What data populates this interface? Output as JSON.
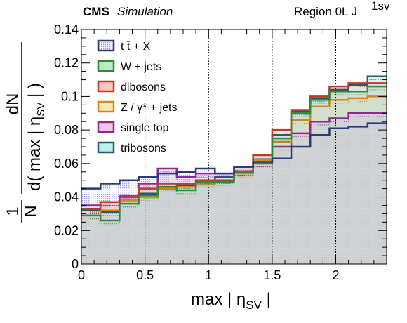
{
  "header": {
    "cms": "CMS",
    "simulation": "Simulation",
    "region": "Region 0L J",
    "region_sup": "1sv"
  },
  "axes": {
    "xlabel_main": "max | η",
    "xlabel_sub": "SV",
    "xlabel_end": " |",
    "ylabel_one": "1",
    "ylabel_n": "N",
    "ylabel_num": "dN",
    "ylabel_den_main": "d( max | η",
    "ylabel_den_sub": "SV",
    "ylabel_den_end": " | )"
  },
  "chart_data": {
    "type": "histogram",
    "xlim": [
      0,
      2.4
    ],
    "ylim": [
      0,
      0.14
    ],
    "x_ticks": [
      0,
      0.5,
      1,
      1.5,
      2
    ],
    "x_tick_labels": [
      "0",
      "0.5",
      "1",
      "1.5",
      "2"
    ],
    "y_ticks": [
      0,
      0.02,
      0.04,
      0.06,
      0.08,
      0.1,
      0.12,
      0.14
    ],
    "y_tick_labels": [
      "0",
      "0.02",
      "0.04",
      "0.06",
      "0.08",
      "0.1",
      "0.12",
      "0.14"
    ],
    "dashed_lines_x": [
      0.5,
      1,
      1.5,
      2
    ],
    "bin_edges": [
      0,
      0.15,
      0.3,
      0.45,
      0.6,
      0.75,
      0.9,
      1.05,
      1.2,
      1.35,
      1.5,
      1.65,
      1.8,
      1.95,
      2.1,
      2.25,
      2.4
    ],
    "legend_position": "top-left",
    "series": [
      {
        "name": "t t̄ + X",
        "color": "#2b3a7a",
        "fill": "#b9bde6",
        "values": [
          0.045,
          0.048,
          0.05,
          0.052,
          0.054,
          0.055,
          0.057,
          0.054,
          0.058,
          0.061,
          0.063,
          0.07,
          0.077,
          0.081,
          0.082,
          0.084
        ]
      },
      {
        "name": "W + jets",
        "color": "#2e8b3a",
        "fill": "#9fe3a9",
        "values": [
          0.029,
          0.026,
          0.036,
          0.041,
          0.046,
          0.044,
          0.049,
          0.049,
          0.055,
          0.06,
          0.075,
          0.09,
          0.098,
          0.103,
          0.103,
          0.106
        ]
      },
      {
        "name": "dibosons",
        "color": "#c0392b",
        "fill": "#f2b3aa",
        "values": [
          0.033,
          0.037,
          0.041,
          0.045,
          0.048,
          0.048,
          0.05,
          0.05,
          0.058,
          0.065,
          0.08,
          0.092,
          0.1,
          0.106,
          0.108,
          0.108
        ]
      },
      {
        "name": "Z / γ* + jets",
        "color": "#d18a1a",
        "fill": "#f5dca0",
        "values": [
          0.029,
          0.032,
          0.038,
          0.04,
          0.045,
          0.046,
          0.048,
          0.05,
          0.054,
          0.062,
          0.073,
          0.086,
          0.094,
          0.098,
          0.099,
          0.1
        ]
      },
      {
        "name": "single top",
        "color": "#8e2a8e",
        "fill": "#e0b0e0",
        "values": [
          0.035,
          0.037,
          0.04,
          0.048,
          0.057,
          0.052,
          0.054,
          0.054,
          0.058,
          0.06,
          0.07,
          0.078,
          0.085,
          0.087,
          0.09,
          0.09
        ]
      },
      {
        "name": "tribosons",
        "color": "#1f5f6a",
        "fill": "#a8e2ea",
        "values": [
          0.032,
          0.031,
          0.038,
          0.042,
          0.045,
          0.047,
          0.048,
          0.052,
          0.055,
          0.065,
          0.077,
          0.091,
          0.099,
          0.104,
          0.107,
          0.112
        ]
      }
    ]
  }
}
